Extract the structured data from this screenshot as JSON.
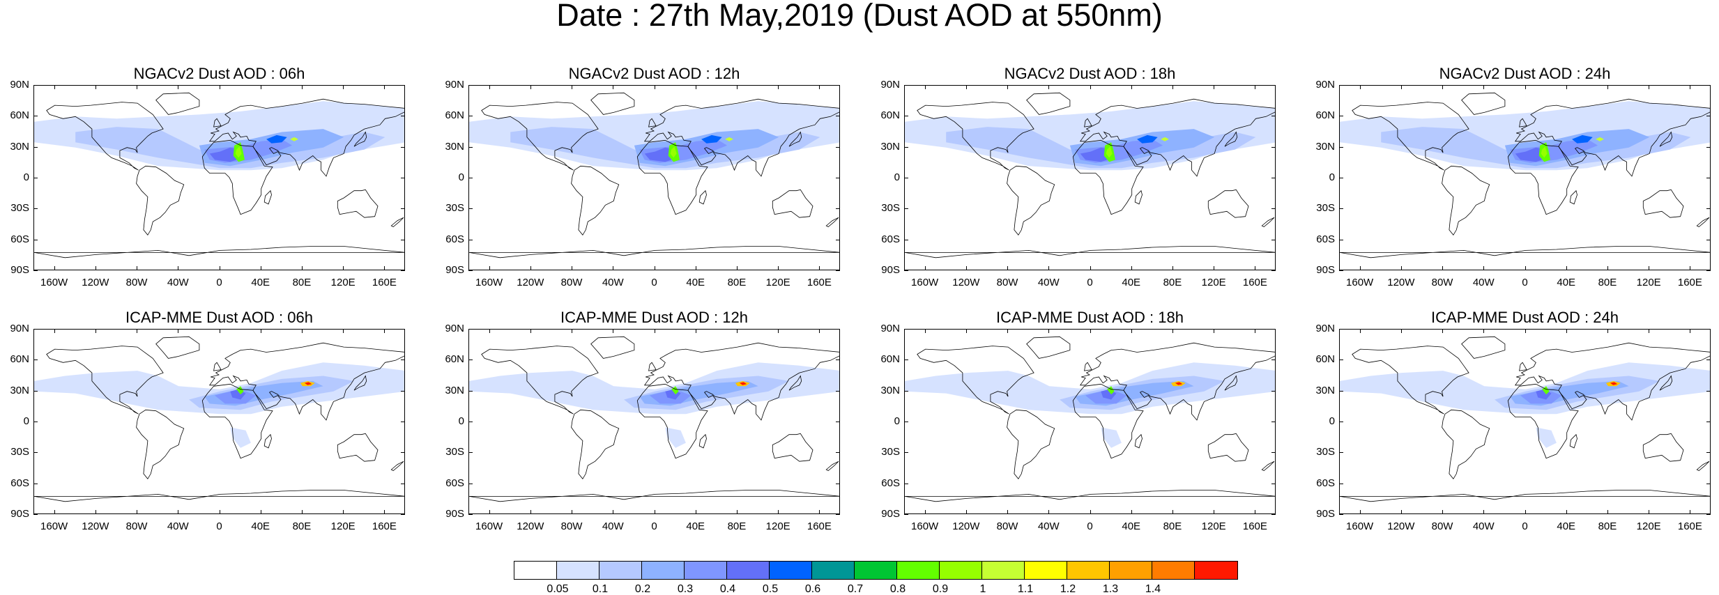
{
  "title": "Date : 27th May,2019 (Dust AOD at 550nm)",
  "panels": [
    {
      "title": "NGACv2 Dust AOD : 06h",
      "model": "NGACv2",
      "lead": "06h"
    },
    {
      "title": "NGACv2 Dust AOD : 12h",
      "model": "NGACv2",
      "lead": "12h"
    },
    {
      "title": "NGACv2 Dust AOD : 18h",
      "model": "NGACv2",
      "lead": "18h"
    },
    {
      "title": "NGACv2 Dust AOD : 24h",
      "model": "NGACv2",
      "lead": "24h"
    },
    {
      "title": "ICAP-MME Dust AOD : 06h",
      "model": "ICAP-MME",
      "lead": "06h"
    },
    {
      "title": "ICAP-MME Dust AOD : 12h",
      "model": "ICAP-MME",
      "lead": "12h"
    },
    {
      "title": "ICAP-MME Dust AOD : 18h",
      "model": "ICAP-MME",
      "lead": "18h"
    },
    {
      "title": "ICAP-MME Dust AOD : 24h",
      "model": "ICAP-MME",
      "lead": "24h"
    }
  ],
  "lat_labels": [
    "90N",
    "60N",
    "30N",
    "0",
    "30S",
    "60S",
    "90S"
  ],
  "lon_labels": [
    "160W",
    "120W",
    "80W",
    "40W",
    "0",
    "40E",
    "80E",
    "120E",
    "160E"
  ],
  "colorbar": {
    "colors": [
      "#ffffff",
      "#d6e2ff",
      "#b5c9ff",
      "#8eb2ff",
      "#7f96ff",
      "#6370f8",
      "#0063ff",
      "#009696",
      "#00c633",
      "#63ff00",
      "#96ff00",
      "#c6ff33",
      "#ffff00",
      "#ffc600",
      "#ffa000",
      "#ff7c00",
      "#ff1900"
    ],
    "levels": [
      "0.05",
      "0.1",
      "0.2",
      "0.3",
      "0.4",
      "0.5",
      "0.6",
      "0.7",
      "0.8",
      "0.9",
      "1",
      "1.1",
      "1.2",
      "1.3",
      "1.4"
    ]
  }
}
